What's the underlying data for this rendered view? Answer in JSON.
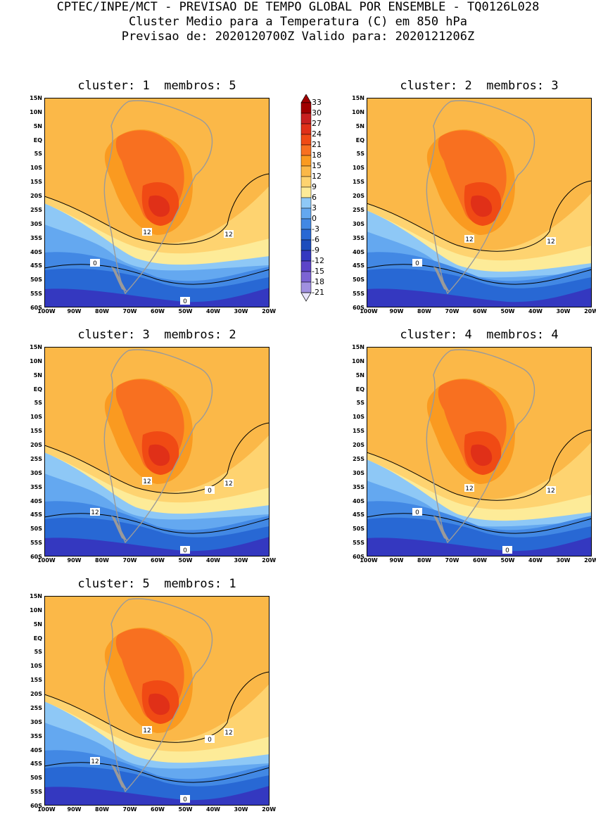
{
  "header": {
    "line1": "CPTEC/INPE/MCT - PREVISAO DE TEMPO GLOBAL POR ENSEMBLE - TQ0126L028",
    "line2": "Cluster Medio para a Temperatura (C) em 850 hPa",
    "line3": "Previsao de: 2020120700Z   Valido para: 2020121206Z"
  },
  "y_ticks": [
    "15N",
    "10N",
    "5N",
    "EQ",
    "5S",
    "10S",
    "15S",
    "20S",
    "25S",
    "30S",
    "35S",
    "40S",
    "45S",
    "50S",
    "55S",
    "60S"
  ],
  "x_ticks": [
    "100W",
    "90W",
    "80W",
    "70W",
    "60W",
    "50W",
    "40W",
    "30W",
    "20W"
  ],
  "colorbar": {
    "labels": [
      "33",
      "30",
      "27",
      "24",
      "21",
      "18",
      "15",
      "12",
      "9",
      "6",
      "3",
      "0",
      "-3",
      "-6",
      "-9",
      "-12",
      "-15",
      "-18",
      "-21"
    ],
    "colors": [
      "#a00000",
      "#c82020",
      "#e03018",
      "#f04a14",
      "#f87020",
      "#fa9a20",
      "#fbb848",
      "#fed370",
      "#fdeb98",
      "#8ec8f6",
      "#64a8f0",
      "#4288e4",
      "#2868d4",
      "#1c4cbc",
      "#3438c0",
      "#5c44c8",
      "#7c64d4",
      "#a090e0",
      "#c8c0f0"
    ],
    "top_color": "#a00000",
    "bottom_color": "#e8e4fa"
  },
  "panels": [
    {
      "cluster_label": "cluster: 1",
      "members_label": "membros: 5",
      "contour_labels": [
        "12",
        "12",
        "0",
        "0"
      ]
    },
    {
      "cluster_label": "cluster: 2",
      "members_label": "membros: 3",
      "contour_labels": [
        "12",
        "12",
        "0"
      ]
    },
    {
      "cluster_label": "cluster: 3",
      "members_label": "membros: 2",
      "contour_labels": [
        "12",
        "12",
        "12",
        "0",
        "0"
      ]
    },
    {
      "cluster_label": "cluster: 4",
      "members_label": "membros: 4",
      "contour_labels": [
        "12",
        "12",
        "0",
        "0"
      ]
    },
    {
      "cluster_label": "cluster: 5",
      "members_label": "membros: 1",
      "contour_labels": [
        "12",
        "12",
        "12",
        "0",
        "0"
      ]
    }
  ]
}
